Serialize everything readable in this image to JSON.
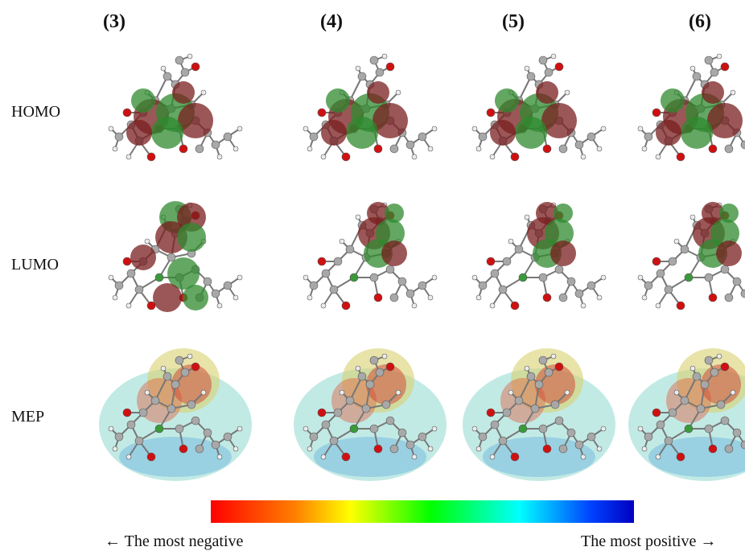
{
  "columns": [
    "(3)",
    "(4)",
    "(5)",
    "(6)"
  ],
  "rows": [
    "HOMO",
    "LUMO",
    "MEP"
  ],
  "colorbar": {
    "left_text": "← The most negative",
    "right_text": "The most positive →"
  },
  "colors": {
    "orbital_positive": "#7a1f1f",
    "orbital_negative": "#2f8a2f",
    "atom_carbon": "#a8a8a8",
    "atom_hydrogen": "#ececec",
    "atom_oxygen": "#d01010",
    "atom_nitrogen": "#1020c0",
    "atom_boron": "#3a9a3a"
  }
}
